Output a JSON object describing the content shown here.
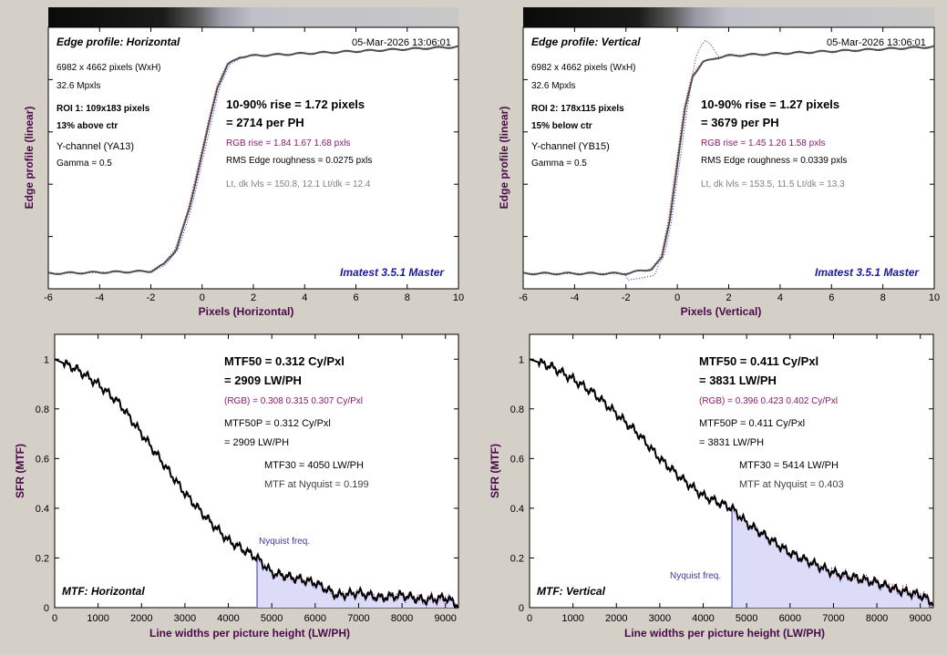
{
  "top_left": {
    "title": "Edge profile: Horizontal",
    "timestamp": "05-Mar-2026 13:06:01",
    "dims": "6982 x 4662 pixels (WxH)",
    "mpxls": "32.6 Mpxls",
    "roi": "ROI 1:  109x183 pixels",
    "roi_pos": "13% above ctr",
    "channel": "Y-channel  (YA13)",
    "gamma": "Gamma = 0.5",
    "rise": "10-90% rise = 1.72 pixels",
    "per_ph": "= 2714 per PH",
    "rgb_rise": "RGB rise = 1.84  1.67  1.68 pxls",
    "roughness": "RMS Edge roughness = 0.0275 pxls",
    "levels": "Lt, dk lvls = 150.8, 12.1   Lt/dk = 12.4",
    "version": "Imatest 3.5.1 Master",
    "ylabel": "Edge profile (linear)",
    "xlabel": "Pixels (Horizontal)"
  },
  "top_right": {
    "title": "Edge profile: Vertical",
    "timestamp": "05-Mar-2026 13:06:01",
    "dims": "6982 x 4662 pixels (WxH)",
    "mpxls": "32.6 Mpxls",
    "roi": "ROI 2:  178x115 pixels",
    "roi_pos": "15% below ctr",
    "channel": "Y-channel  (YB15)",
    "gamma": "Gamma = 0.5",
    "rise": "10-90% rise = 1.27 pixels",
    "per_ph": "= 3679 per PH",
    "rgb_rise": "RGB rise = 1.45  1.26  1.58 pxls",
    "roughness": "RMS Edge roughness = 0.0339 pxls",
    "levels": "Lt, dk lvls = 153.5, 11.5   Lt/dk = 13.3",
    "version": "Imatest 3.5.1 Master",
    "ylabel": "Edge profile (linear)",
    "xlabel": "Pixels (Vertical)"
  },
  "bottom_left": {
    "mtf50": "MTF50 = 0.312 Cy/Pxl",
    "mtf50_lw": "= 2909 LW/PH",
    "rgb": "(RGB) = 0.308  0.315  0.307 Cy/Pxl",
    "mtf50p": "MTF50P = 0.312 Cy/Pxl",
    "mtf50p_lw": "= 2909 LW/PH",
    "mtf30": "MTF30 = 4050 LW/PH",
    "nyq_val": "MTF at Nyquist = 0.199",
    "nyq_label": "Nyquist freq.",
    "title": "MTF: Horizontal",
    "ylabel": "SFR (MTF)",
    "xlabel": "Line widths per picture height (LW/PH)"
  },
  "bottom_right": {
    "mtf50": "MTF50 = 0.411 Cy/Pxl",
    "mtf50_lw": "= 3831 LW/PH",
    "rgb": "(RGB) = 0.396  0.423  0.402 Cy/Pxl",
    "mtf50p": "MTF50P = 0.411 Cy/Pxl",
    "mtf50p_lw": "= 3831 LW/PH",
    "mtf30": "MTF30 = 5414 LW/PH",
    "nyq_val": "MTF at Nyquist = 0.403",
    "nyq_label": "Nyquist freq.",
    "title": "MTF: Vertical",
    "ylabel": "SFR (MTF)",
    "xlabel": "Line widths per picture height (LW/PH)"
  },
  "colors": {
    "line": "#202020",
    "red": "#cc2020",
    "blue": "#2020cc",
    "label": "#4a0a4a",
    "purple": "#8a1a6a",
    "navy": "#1a1a9a",
    "fill": "#dcdcf8",
    "nyq": "#7070d0"
  },
  "chart_data": [
    {
      "type": "line",
      "title": "Edge profile: Horizontal",
      "xlabel": "Pixels (Horizontal)",
      "ylabel": "Edge profile (linear)",
      "xlim": [
        -6,
        10
      ],
      "xticks": [
        -6,
        -4,
        -2,
        0,
        2,
        4,
        6,
        8,
        10
      ],
      "series": [
        {
          "x": [
            -6,
            -2,
            -1.5,
            -1,
            -0.5,
            -0.2,
            0,
            0.3,
            0.6,
            1,
            1.5,
            2,
            4,
            6,
            8,
            10
          ],
          "values": [
            0.01,
            0.02,
            0.05,
            0.12,
            0.3,
            0.45,
            0.55,
            0.7,
            0.85,
            0.95,
            0.985,
            0.99,
            1.0,
            1.01,
            1.02,
            1.03
          ]
        }
      ]
    },
    {
      "type": "line",
      "title": "Edge profile: Vertical",
      "xlabel": "Pixels (Vertical)",
      "ylabel": "Edge profile (linear)",
      "xlim": [
        -6,
        10
      ],
      "xticks": [
        -6,
        -4,
        -2,
        0,
        2,
        4,
        6,
        8,
        10
      ],
      "series": [
        {
          "x": [
            -6,
            -2,
            -1,
            -0.6,
            -0.3,
            0,
            0.3,
            0.6,
            1,
            1.5,
            2,
            4,
            6,
            8,
            10
          ],
          "values": [
            0.01,
            0.01,
            0.03,
            0.08,
            0.25,
            0.5,
            0.75,
            0.9,
            0.96,
            0.98,
            0.99,
            1.0,
            1.01,
            1.02,
            1.03
          ]
        }
      ]
    },
    {
      "type": "area",
      "xlabel": "Line widths per picture height (LW/PH)",
      "ylabel": "SFR (MTF)",
      "xlim": [
        0,
        9300
      ],
      "ylim": [
        0,
        1.1
      ],
      "xticks": [
        0,
        1000,
        2000,
        3000,
        4000,
        5000,
        6000,
        7000,
        8000,
        9000
      ],
      "yticks": [
        0,
        0.2,
        0.4,
        0.6,
        0.8,
        1
      ],
      "nyquist": 4662,
      "series": [
        {
          "x": [
            0,
            500,
            1000,
            1500,
            2000,
            2500,
            3000,
            3500,
            4000,
            4662,
            5000,
            5500,
            6000,
            6500,
            7000,
            7500,
            8000,
            8500,
            9000,
            9300
          ],
          "values": [
            1.0,
            0.96,
            0.9,
            0.82,
            0.7,
            0.58,
            0.46,
            0.36,
            0.27,
            0.2,
            0.14,
            0.12,
            0.1,
            0.05,
            0.06,
            0.04,
            0.05,
            0.03,
            0.04,
            0.01
          ]
        }
      ]
    },
    {
      "type": "area",
      "xlabel": "Line widths per picture height (LW/PH)",
      "ylabel": "SFR (MTF)",
      "xlim": [
        0,
        9300
      ],
      "ylim": [
        0,
        1.1
      ],
      "xticks": [
        0,
        1000,
        2000,
        3000,
        4000,
        5000,
        6000,
        7000,
        8000,
        9000
      ],
      "yticks": [
        0,
        0.2,
        0.4,
        0.6,
        0.8,
        1
      ],
      "nyquist": 4662,
      "series": [
        {
          "x": [
            0,
            500,
            1000,
            1500,
            2000,
            2500,
            3000,
            3500,
            4000,
            4662,
            5000,
            5500,
            6000,
            6500,
            7000,
            7500,
            8000,
            8500,
            9000,
            9300
          ],
          "values": [
            1.0,
            0.97,
            0.92,
            0.86,
            0.78,
            0.7,
            0.6,
            0.52,
            0.45,
            0.4,
            0.34,
            0.28,
            0.22,
            0.18,
            0.14,
            0.12,
            0.1,
            0.07,
            0.05,
            0.02
          ]
        }
      ]
    }
  ]
}
